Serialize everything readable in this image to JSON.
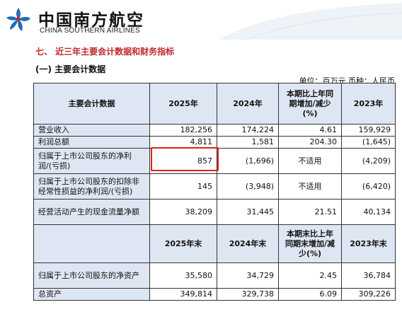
{
  "header": {
    "logo_cn": "中国南方航空",
    "logo_en": "CHINA SOUTHERN AIRLINES"
  },
  "section": {
    "title": "七、 近三年主要会计数据和财务指标",
    "subtitle": "(一) 主要会计数据",
    "unit": "单位：百万元  币种：人民币"
  },
  "table": {
    "head1": [
      "主要会计数据",
      "2025年",
      "2024年",
      "本期比上年同期增加/减少(%)",
      "2023年"
    ],
    "rows1": [
      {
        "label": "营业收入",
        "v2025": "182,256",
        "v2024": "174,224",
        "change": "4.61",
        "v2023": "159,929"
      },
      {
        "label": "利润总额",
        "v2025": "4,811",
        "v2024": "1,581",
        "change": "204.30",
        "v2023": "(1,645)"
      },
      {
        "label": "归属于上市公司股东的净利润/(亏损)",
        "v2025": "857",
        "v2024": "(1,696)",
        "change": "不适用",
        "v2023": "(4,209)"
      },
      {
        "label": "归属于上市公司股东的扣除非经常性损益的净利润/(亏损)",
        "v2025": "145",
        "v2024": "(3,948)",
        "change": "不适用",
        "v2023": "(6,420)"
      },
      {
        "label": "经营活动产生的现金流量净额",
        "v2025": "38,209",
        "v2024": "31,445",
        "change": "21.51",
        "v2023": "40,134"
      }
    ],
    "head2": [
      "",
      "2025年末",
      "2024年末",
      "本期末比上年同期末增加/减少(%)",
      "2023年末"
    ],
    "rows2": [
      {
        "label": "归属于上市公司股东的净资产",
        "v2025": "35,580",
        "v2024": "34,729",
        "change": "2.45",
        "v2023": "36,784"
      },
      {
        "label": "总资产",
        "v2025": "349,814",
        "v2024": "329,738",
        "change": "6.09",
        "v2023": "309,226"
      }
    ]
  }
}
